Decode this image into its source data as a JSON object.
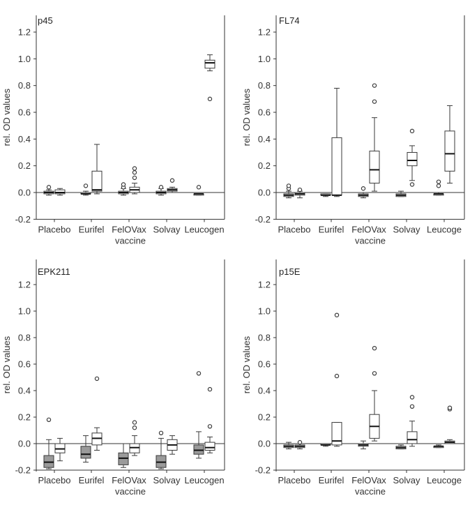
{
  "chart_data": [
    {
      "type": "box",
      "title": "p45",
      "xlabel": "vaccine",
      "ylabel": "rel. OD values",
      "ylim": [
        -0.2,
        1.3
      ],
      "yticks": [
        -0.2,
        0.0,
        0.2,
        0.4,
        0.6,
        0.8,
        1.0,
        1.2
      ],
      "categories": [
        "Placebo",
        "Eurifel",
        "FelOVax",
        "Solvay",
        "Leucogen"
      ],
      "groups": [
        {
          "category": "Placebo",
          "boxes": [
            {
              "shade": "white",
              "min": -0.02,
              "q1": -0.01,
              "median": 0.0,
              "q3": 0.01,
              "max": 0.02,
              "outliers": [
                0.04
              ]
            },
            {
              "shade": "white",
              "min": -0.02,
              "q1": -0.01,
              "median": 0.0,
              "q3": 0.02,
              "max": 0.03,
              "outliers": []
            }
          ]
        },
        {
          "category": "Eurifel",
          "boxes": [
            {
              "shade": "white",
              "min": -0.02,
              "q1": -0.01,
              "median": -0.01,
              "q3": 0.0,
              "max": 0.01,
              "outliers": [
                0.05
              ]
            },
            {
              "shade": "white",
              "min": -0.01,
              "q1": 0.01,
              "median": 0.02,
              "q3": 0.16,
              "max": 0.36,
              "outliers": []
            }
          ]
        },
        {
          "category": "FelOVax",
          "boxes": [
            {
              "shade": "white",
              "min": -0.02,
              "q1": -0.01,
              "median": 0.0,
              "q3": 0.01,
              "max": 0.03,
              "outliers": [
                0.04,
                0.06
              ]
            },
            {
              "shade": "white",
              "min": -0.01,
              "q1": 0.0,
              "median": 0.02,
              "q3": 0.04,
              "max": 0.07,
              "outliers": [
                0.11,
                0.15,
                0.18
              ]
            }
          ]
        },
        {
          "category": "Solvay",
          "boxes": [
            {
              "shade": "white",
              "min": -0.02,
              "q1": -0.01,
              "median": 0.0,
              "q3": 0.01,
              "max": 0.03,
              "outliers": [
                0.04
              ]
            },
            {
              "shade": "white",
              "min": 0.0,
              "q1": 0.01,
              "median": 0.02,
              "q3": 0.03,
              "max": 0.04,
              "outliers": [
                0.09
              ]
            }
          ]
        },
        {
          "category": "Leucogen",
          "boxes": [
            {
              "shade": "white",
              "min": -0.02,
              "q1": -0.02,
              "median": -0.01,
              "q3": -0.01,
              "max": -0.01,
              "outliers": [
                0.04
              ]
            },
            {
              "shade": "white",
              "min": 0.91,
              "q1": 0.93,
              "median": 0.97,
              "q3": 0.99,
              "max": 1.03,
              "outliers": [
                0.7
              ]
            }
          ]
        }
      ]
    },
    {
      "type": "box",
      "title": "FL74",
      "xlabel": "vaccine",
      "ylabel": "rel. OD values",
      "ylim": [
        -0.2,
        1.3
      ],
      "yticks": [
        -0.2,
        0.0,
        0.2,
        0.4,
        0.6,
        0.8,
        1.0,
        1.2
      ],
      "categories": [
        "Placebo",
        "Eurifel",
        "FelOVax",
        "Solvay",
        "Leucoge"
      ],
      "groups": [
        {
          "category": "Placebo",
          "boxes": [
            {
              "shade": "white",
              "min": -0.04,
              "q1": -0.03,
              "median": -0.02,
              "q3": -0.01,
              "max": 0.01,
              "outliers": [
                0.03,
                0.05
              ]
            },
            {
              "shade": "white",
              "min": -0.04,
              "q1": -0.02,
              "median": -0.01,
              "q3": 0.0,
              "max": 0.01,
              "outliers": [
                0.02
              ]
            }
          ]
        },
        {
          "category": "Eurifel",
          "boxes": [
            {
              "shade": "white",
              "min": -0.03,
              "q1": -0.02,
              "median": -0.02,
              "q3": -0.01,
              "max": -0.01,
              "outliers": []
            },
            {
              "shade": "white",
              "min": -0.03,
              "q1": -0.02,
              "median": -0.02,
              "q3": 0.41,
              "max": 0.78,
              "outliers": []
            }
          ]
        },
        {
          "category": "FelOVax",
          "boxes": [
            {
              "shade": "white",
              "min": -0.04,
              "q1": -0.03,
              "median": -0.02,
              "q3": -0.01,
              "max": 0.0,
              "outliers": [
                0.03
              ]
            },
            {
              "shade": "white",
              "min": 0.01,
              "q1": 0.07,
              "median": 0.17,
              "q3": 0.31,
              "max": 0.56,
              "outliers": [
                0.68,
                0.8
              ]
            }
          ]
        },
        {
          "category": "Solvay",
          "boxes": [
            {
              "shade": "white",
              "min": -0.03,
              "q1": -0.03,
              "median": -0.02,
              "q3": -0.01,
              "max": 0.01,
              "outliers": []
            },
            {
              "shade": "white",
              "min": 0.09,
              "q1": 0.2,
              "median": 0.24,
              "q3": 0.3,
              "max": 0.35,
              "outliers": [
                0.06,
                0.46
              ]
            }
          ]
        },
        {
          "category": "Leucoge",
          "boxes": [
            {
              "shade": "white",
              "min": -0.02,
              "q1": -0.02,
              "median": -0.01,
              "q3": -0.01,
              "max": 0.0,
              "outliers": [
                0.05,
                0.08
              ]
            },
            {
              "shade": "white",
              "min": 0.07,
              "q1": 0.16,
              "median": 0.29,
              "q3": 0.46,
              "max": 0.65,
              "outliers": []
            }
          ]
        }
      ]
    },
    {
      "type": "box",
      "title": "EPK211",
      "xlabel": "vaccine",
      "ylabel": "rel. OD values",
      "ylim": [
        -0.2,
        1.3
      ],
      "yticks": [
        -0.2,
        0.0,
        0.2,
        0.4,
        0.6,
        0.8,
        1.0,
        1.2
      ],
      "categories": [
        "Placebo",
        "Eurifel",
        "FelOVax",
        "Solvay",
        "Leucogen"
      ],
      "groups": [
        {
          "category": "Placebo",
          "boxes": [
            {
              "shade": "gray",
              "min": -0.19,
              "q1": -0.18,
              "median": -0.14,
              "q3": -0.09,
              "max": 0.03,
              "outliers": [
                0.18
              ]
            },
            {
              "shade": "white",
              "min": -0.13,
              "q1": -0.07,
              "median": -0.04,
              "q3": 0.0,
              "max": 0.04,
              "outliers": []
            }
          ]
        },
        {
          "category": "Eurifel",
          "boxes": [
            {
              "shade": "gray",
              "min": -0.14,
              "q1": -0.11,
              "median": -0.08,
              "q3": -0.02,
              "max": 0.06,
              "outliers": []
            },
            {
              "shade": "white",
              "min": -0.05,
              "q1": -0.01,
              "median": 0.04,
              "q3": 0.08,
              "max": 0.12,
              "outliers": [
                0.49
              ]
            }
          ]
        },
        {
          "category": "FelOVax",
          "boxes": [
            {
              "shade": "gray",
              "min": -0.18,
              "q1": -0.16,
              "median": -0.11,
              "q3": -0.07,
              "max": 0.0,
              "outliers": []
            },
            {
              "shade": "white",
              "min": -0.09,
              "q1": -0.07,
              "median": -0.03,
              "q3": 0.0,
              "max": 0.06,
              "outliers": [
                0.12,
                0.16
              ]
            }
          ]
        },
        {
          "category": "Solvay",
          "boxes": [
            {
              "shade": "gray",
              "min": -0.19,
              "q1": -0.18,
              "median": -0.14,
              "q3": -0.09,
              "max": 0.04,
              "outliers": [
                0.08
              ]
            },
            {
              "shade": "white",
              "min": -0.08,
              "q1": -0.05,
              "median": -0.01,
              "q3": 0.03,
              "max": 0.06,
              "outliers": []
            }
          ]
        },
        {
          "category": "Leucogen",
          "boxes": [
            {
              "shade": "gray",
              "min": -0.11,
              "q1": -0.08,
              "median": -0.05,
              "q3": -0.01,
              "max": 0.09,
              "outliers": [
                0.53
              ]
            },
            {
              "shade": "white",
              "min": -0.07,
              "q1": -0.05,
              "median": -0.03,
              "q3": 0.01,
              "max": 0.05,
              "outliers": [
                0.13,
                0.41
              ]
            }
          ]
        }
      ]
    },
    {
      "type": "box",
      "title": "p15E",
      "xlabel": "vaccine",
      "ylabel": "rel. OD values",
      "ylim": [
        -0.2,
        1.3
      ],
      "yticks": [
        -0.2,
        0.0,
        0.2,
        0.4,
        0.6,
        0.8,
        1.0,
        1.2
      ],
      "categories": [
        "Placebo",
        "Eurifel",
        "FelOVax",
        "Solvay",
        "Leucoge"
      ],
      "groups": [
        {
          "category": "Placebo",
          "boxes": [
            {
              "shade": "white",
              "min": -0.04,
              "q1": -0.03,
              "median": -0.02,
              "q3": -0.01,
              "max": 0.01,
              "outliers": []
            },
            {
              "shade": "white",
              "min": -0.04,
              "q1": -0.03,
              "median": -0.02,
              "q3": -0.01,
              "max": 0.0,
              "outliers": [
                0.01
              ]
            }
          ]
        },
        {
          "category": "Eurifel",
          "boxes": [
            {
              "shade": "white",
              "min": -0.02,
              "q1": -0.01,
              "median": -0.01,
              "q3": 0.0,
              "max": 0.0,
              "outliers": []
            },
            {
              "shade": "white",
              "min": -0.02,
              "q1": -0.01,
              "median": 0.02,
              "q3": 0.16,
              "max": 0.16,
              "outliers": [
                0.51,
                0.97
              ]
            }
          ]
        },
        {
          "category": "FelOVax",
          "boxes": [
            {
              "shade": "white",
              "min": -0.04,
              "q1": -0.02,
              "median": -0.01,
              "q3": 0.0,
              "max": 0.02,
              "outliers": []
            },
            {
              "shade": "white",
              "min": 0.02,
              "q1": 0.04,
              "median": 0.13,
              "q3": 0.22,
              "max": 0.4,
              "outliers": [
                0.53,
                0.72
              ]
            }
          ]
        },
        {
          "category": "Solvay",
          "boxes": [
            {
              "shade": "white",
              "min": -0.04,
              "q1": -0.04,
              "median": -0.03,
              "q3": -0.02,
              "max": -0.01,
              "outliers": []
            },
            {
              "shade": "white",
              "min": -0.02,
              "q1": 0.0,
              "median": 0.03,
              "q3": 0.09,
              "max": 0.17,
              "outliers": [
                0.28,
                0.35
              ]
            }
          ]
        },
        {
          "category": "Leucoge",
          "boxes": [
            {
              "shade": "white",
              "min": -0.03,
              "q1": -0.03,
              "median": -0.02,
              "q3": -0.02,
              "max": -0.01,
              "outliers": []
            },
            {
              "shade": "white",
              "min": 0.0,
              "q1": 0.0,
              "median": 0.01,
              "q3": 0.02,
              "max": 0.03,
              "outliers": [
                0.26,
                0.27
              ]
            }
          ]
        }
      ]
    }
  ],
  "colors": {
    "gray_box": "#9a9a9a",
    "white_box": "#ffffff",
    "stroke": "#3a3a3a"
  }
}
